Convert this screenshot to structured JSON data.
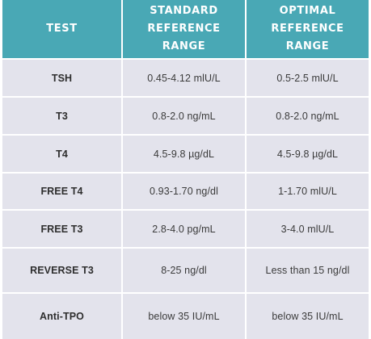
{
  "headers": [
    "TEST",
    "STANDARD REFERENCE RANGE",
    "OPTIMAL REFERENCE RANGE"
  ],
  "rows": [
    {
      "test": "TSH",
      "standard": "0.45-4.12 mlU/L",
      "optimal": "0.5-2.5 mlU/L"
    },
    {
      "test": "T3",
      "standard": "0.8-2.0 ng/mL",
      "optimal": "0.8-2.0 ng/mL"
    },
    {
      "test": "T4",
      "standard": "4.5-9.8 µg/dL",
      "optimal": "4.5-9.8 µg/dL"
    },
    {
      "test": "FREE T4",
      "standard": "0.93-1.70 ng/dl",
      "optimal": "1-1.70 mlU/L"
    },
    {
      "test": "FREE T3",
      "standard": "2.8-4.0 pg/mL",
      "optimal": "3-4.0 mlU/L"
    },
    {
      "test": "REVERSE T3",
      "standard": "8-25 ng/dl",
      "optimal": "Less than 15 ng/dl"
    },
    {
      "test": "Anti-TPO",
      "standard": "below 35 IU/mL",
      "optimal": "below 35 IU/mL"
    }
  ],
  "colors": {
    "header_bg": "#49a8b5",
    "row_bg": "#e3e3ec",
    "text": "#3b3b3b"
  }
}
